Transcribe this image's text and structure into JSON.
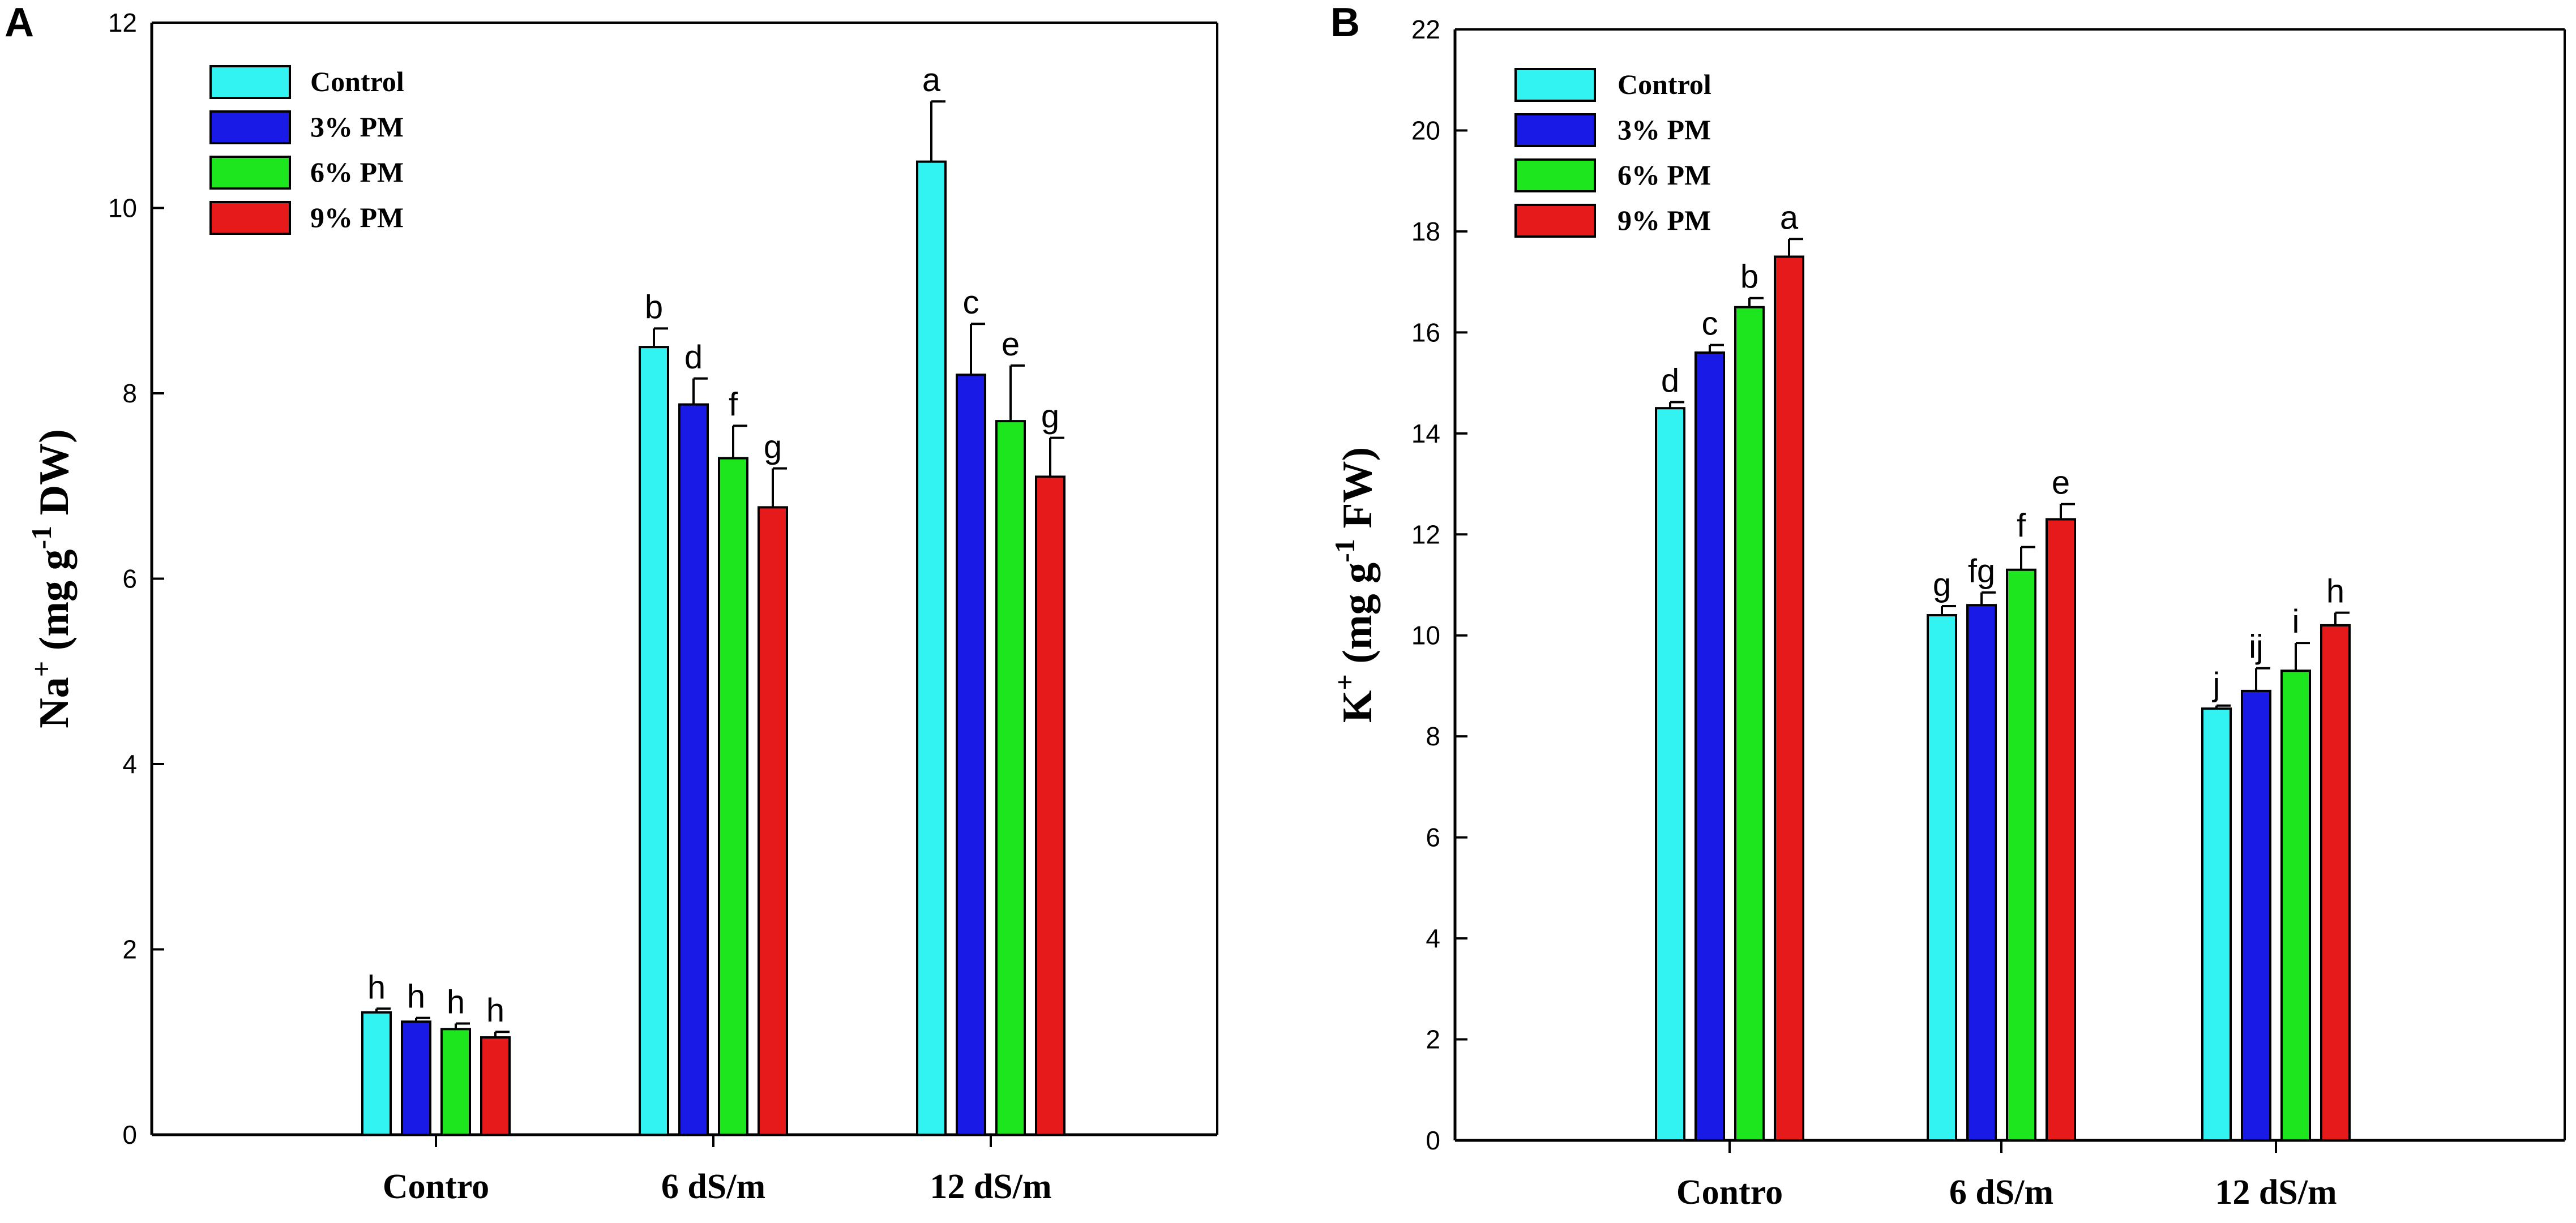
{
  "colors": {
    "Control": "#33f2f2",
    "3% PM": "#1a1ae6",
    "6% PM": "#1ee61e",
    "9% PM": "#e61a1a",
    "axis": "#000000"
  },
  "chart_data": [
    {
      "panel": "A",
      "type": "bar",
      "categories": [
        "Contro",
        "6 dS/m",
        "12 dS/m"
      ],
      "ylabel": {
        "main": "Na",
        "sup_ion": "+",
        "unit_prefix": " (mg g",
        "sup_unit": "-1",
        "unit_suffix": " DW)"
      },
      "ylim": [
        0,
        12
      ],
      "yticks": [
        0,
        2,
        4,
        6,
        8,
        10,
        12
      ],
      "legend_position": "top-left",
      "series": [
        {
          "name": "Control",
          "values": [
            1.32,
            8.5,
            10.5
          ],
          "errors": [
            0.04,
            0.2,
            0.65
          ],
          "letters": [
            "h",
            "b",
            "a"
          ]
        },
        {
          "name": "3% PM",
          "values": [
            1.22,
            7.88,
            8.2
          ],
          "errors": [
            0.04,
            0.28,
            0.55
          ],
          "letters": [
            "h",
            "d",
            "c"
          ]
        },
        {
          "name": "6% PM",
          "values": [
            1.14,
            7.3,
            7.7
          ],
          "errors": [
            0.06,
            0.35,
            0.6
          ],
          "letters": [
            "h",
            "f",
            "e"
          ]
        },
        {
          "name": "9% PM",
          "values": [
            1.05,
            6.77,
            7.1
          ],
          "errors": [
            0.06,
            0.42,
            0.42
          ],
          "letters": [
            "h",
            "g",
            "g"
          ]
        }
      ]
    },
    {
      "panel": "B",
      "type": "bar",
      "categories": [
        "Contro",
        "6 dS/m",
        "12 dS/m"
      ],
      "ylabel": {
        "main": "K",
        "sup_ion": "+",
        "unit_prefix": " (mg g",
        "sup_unit": "-1",
        "unit_suffix": " FW)"
      },
      "ylim": [
        0,
        22
      ],
      "yticks": [
        0,
        2,
        4,
        6,
        8,
        10,
        12,
        14,
        16,
        18,
        20,
        22
      ],
      "legend_position": "top-left",
      "series": [
        {
          "name": "Control",
          "values": [
            14.5,
            10.4,
            8.55
          ],
          "errors": [
            0.12,
            0.18,
            0.06
          ],
          "letters": [
            "d",
            "g",
            "j"
          ]
        },
        {
          "name": "3% PM",
          "values": [
            15.6,
            10.6,
            8.9
          ],
          "errors": [
            0.15,
            0.25,
            0.45
          ],
          "letters": [
            "c",
            "fg",
            "ij"
          ]
        },
        {
          "name": "6% PM",
          "values": [
            16.5,
            11.3,
            9.3
          ],
          "errors": [
            0.18,
            0.45,
            0.55
          ],
          "letters": [
            "b",
            "f",
            "i"
          ]
        },
        {
          "name": "9% PM",
          "values": [
            17.5,
            12.3,
            10.2
          ],
          "errors": [
            0.35,
            0.3,
            0.25
          ],
          "letters": [
            "a",
            "e",
            "h"
          ]
        }
      ]
    }
  ]
}
